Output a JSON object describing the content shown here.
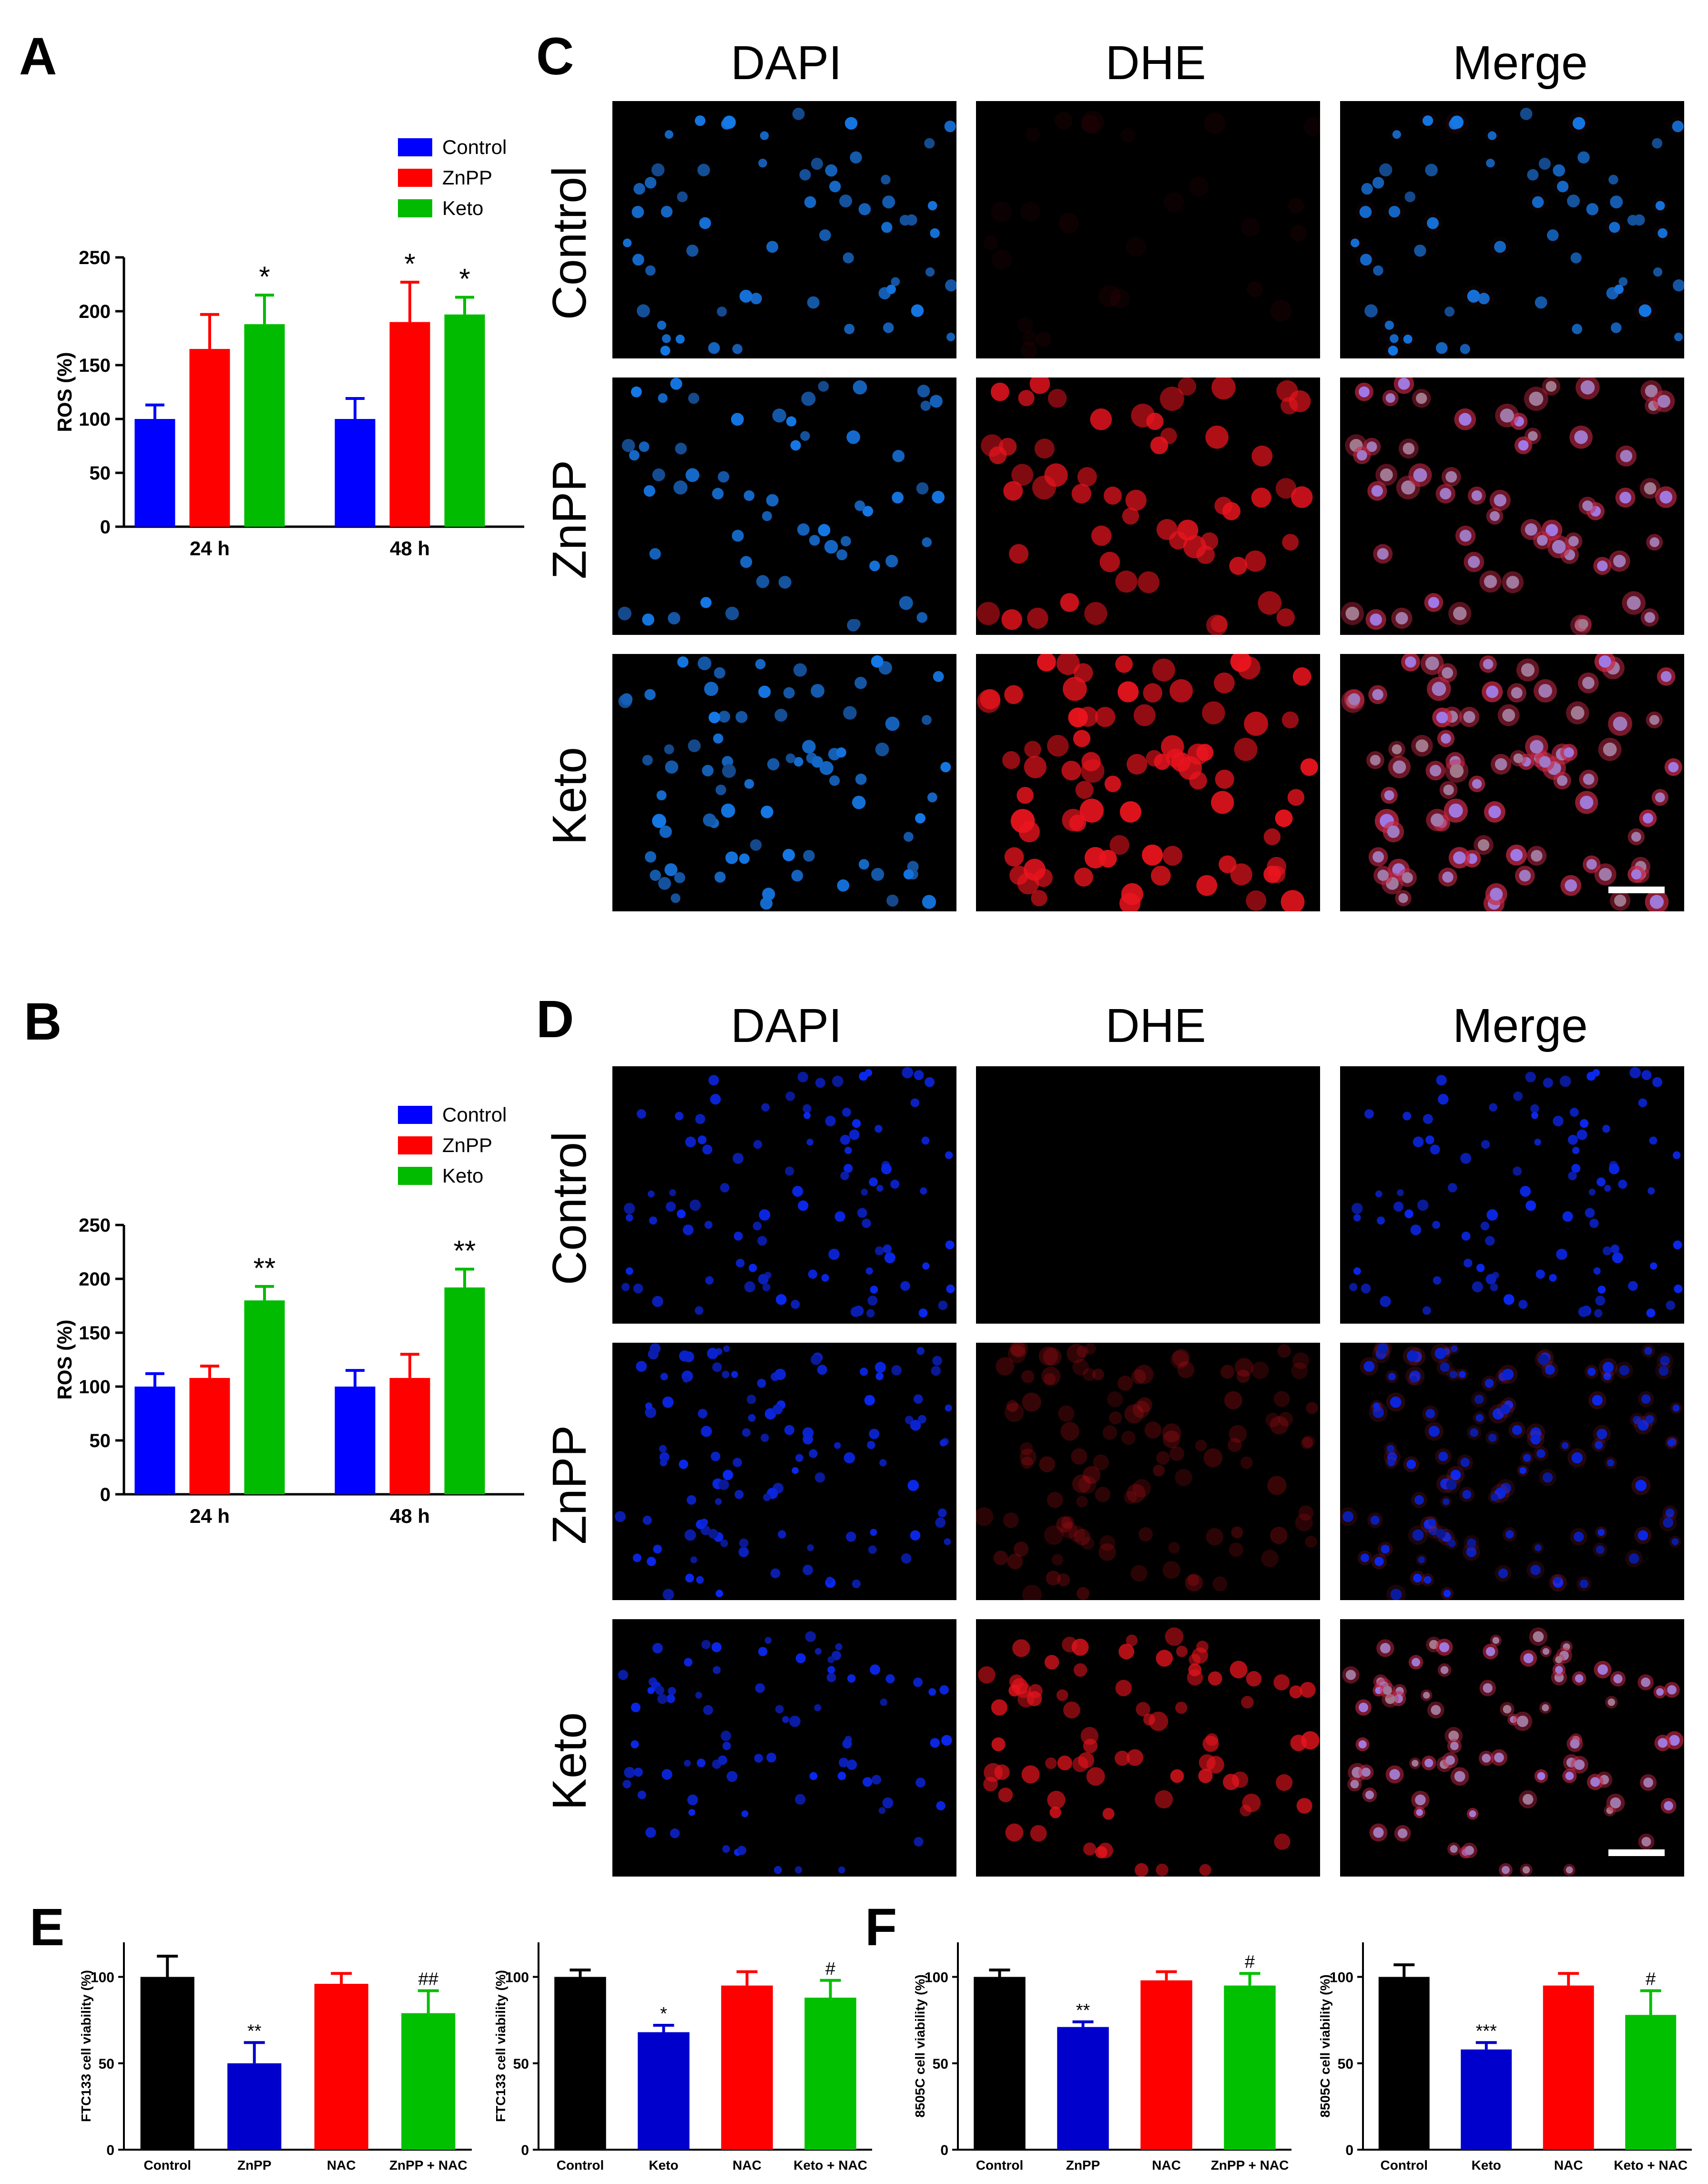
{
  "panels": [
    {
      "letter": "A"
    },
    {
      "letter": "B"
    },
    {
      "letter": "C"
    },
    {
      "letter": "D"
    },
    {
      "letter": "E"
    },
    {
      "letter": "F"
    }
  ],
  "colors": {
    "control": "#0000ff",
    "znpp": "#ff0000",
    "keto": "#00bb00",
    "black": "#000000",
    "blue_dark": "#0000cc",
    "red": "#ff0000",
    "green": "#00c000"
  },
  "microscopy": {
    "C": {
      "columns": [
        "DAPI",
        "DHE",
        "Merge"
      ],
      "rows": [
        "Control",
        "ZnPP",
        "Keto"
      ],
      "scale_bar": true
    },
    "D": {
      "columns": [
        "DAPI",
        "DHE",
        "Merge"
      ],
      "rows": [
        "Control",
        "ZnPP",
        "Keto"
      ],
      "scale_bar": true
    }
  },
  "chart_data": [
    {
      "panel": "A",
      "type": "bar",
      "categories": [
        "24 h",
        "48 h"
      ],
      "series": [
        {
          "name": "Control",
          "values": [
            100,
            100
          ],
          "errors": [
            13,
            19
          ],
          "color": "#0000ff"
        },
        {
          "name": "ZnPP",
          "values": [
            165,
            190
          ],
          "errors": [
            32,
            37
          ],
          "color": "#ff0000"
        },
        {
          "name": "Keto",
          "values": [
            188,
            197
          ],
          "errors": [
            27,
            16
          ],
          "color": "#00bb00"
        }
      ],
      "annotations": [
        {
          "category": "24 h",
          "series": "Keto",
          "text": "*"
        },
        {
          "category": "48 h",
          "series": "ZnPP",
          "text": "*"
        },
        {
          "category": "48 h",
          "series": "Keto",
          "text": "*"
        }
      ],
      "ylabel": "ROS (%)",
      "yticks": [
        "0",
        "50",
        "100",
        "150",
        "200",
        "250"
      ],
      "ylim": [
        0,
        250
      ],
      "legend": "top-right"
    },
    {
      "panel": "B",
      "type": "bar",
      "categories": [
        "24 h",
        "48 h"
      ],
      "series": [
        {
          "name": "Control",
          "values": [
            100,
            100
          ],
          "errors": [
            12,
            15
          ],
          "color": "#0000ff"
        },
        {
          "name": "ZnPP",
          "values": [
            108,
            108
          ],
          "errors": [
            11,
            22
          ],
          "color": "#ff0000"
        },
        {
          "name": "Keto",
          "values": [
            180,
            192
          ],
          "errors": [
            13,
            17
          ],
          "color": "#00bb00"
        }
      ],
      "annotations": [
        {
          "category": "24 h",
          "series": "Keto",
          "text": "**"
        },
        {
          "category": "48 h",
          "series": "Keto",
          "text": "**"
        }
      ],
      "ylabel": "ROS (%)",
      "yticks": [
        "0",
        "50",
        "100",
        "150",
        "200",
        "250"
      ],
      "ylim": [
        0,
        250
      ],
      "legend": "top-right"
    },
    {
      "panel": "E",
      "type": "bar",
      "categories": [
        "Control",
        "ZnPP",
        "NAC",
        "ZnPP + NAC"
      ],
      "values": [
        100,
        50,
        96,
        79
      ],
      "errors": [
        12,
        12,
        6,
        13
      ],
      "colors": [
        "#000000",
        "#0000cc",
        "#ff0000",
        "#00c000"
      ],
      "annotations": [
        "",
        "**",
        "",
        "##"
      ],
      "ylabel": "FTC133 cell viability (%)",
      "yticks": [
        "0",
        "50",
        "100"
      ],
      "ylim": [
        0,
        120
      ]
    },
    {
      "panel": "E",
      "type": "bar",
      "categories": [
        "Control",
        "Keto",
        "NAC",
        "Keto + NAC"
      ],
      "values": [
        100,
        68,
        95,
        88
      ],
      "errors": [
        4,
        4,
        8,
        10
      ],
      "colors": [
        "#000000",
        "#0000cc",
        "#ff0000",
        "#00c000"
      ],
      "annotations": [
        "",
        "*",
        "",
        "#"
      ],
      "ylabel": "FTC133 cell viability (%)",
      "yticks": [
        "0",
        "50",
        "100"
      ],
      "ylim": [
        0,
        120
      ]
    },
    {
      "panel": "F",
      "type": "bar",
      "categories": [
        "Control",
        "ZnPP",
        "NAC",
        "ZnPP + NAC"
      ],
      "values": [
        100,
        71,
        98,
        95
      ],
      "errors": [
        4,
        3,
        5,
        7
      ],
      "colors": [
        "#000000",
        "#0000cc",
        "#ff0000",
        "#00c000"
      ],
      "annotations": [
        "",
        "**",
        "",
        "#"
      ],
      "ylabel": "8505C cell viability (%)",
      "yticks": [
        "0",
        "50",
        "100"
      ],
      "ylim": [
        0,
        120
      ]
    },
    {
      "panel": "F",
      "type": "bar",
      "categories": [
        "Control",
        "Keto",
        "NAC",
        "Keto + NAC"
      ],
      "values": [
        100,
        58,
        95,
        78
      ],
      "errors": [
        7,
        4,
        7,
        14
      ],
      "colors": [
        "#000000",
        "#0000cc",
        "#ff0000",
        "#00c000"
      ],
      "annotations": [
        "",
        "***",
        "",
        "#"
      ],
      "ylabel": "8505C cell viability (%)",
      "yticks": [
        "0",
        "50",
        "100"
      ],
      "ylim": [
        0,
        120
      ]
    }
  ]
}
